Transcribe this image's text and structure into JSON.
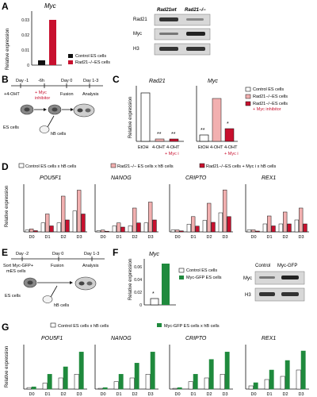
{
  "colors": {
    "white": "#ffffff",
    "black": "#111111",
    "pink": "#f2b0b0",
    "red": "#c8102e",
    "green": "#1f8a3d",
    "gray": "#bdbdbd",
    "blot_bg": "#d8d8d8"
  },
  "panels": {
    "A": {
      "letter": "A",
      "title": "Myc",
      "ylabel": "Relative expression",
      "yticks": [
        "0",
        "0.01",
        "0.02",
        "0.03"
      ],
      "legend": [
        "Control ES cells",
        "Rad21−/−ES cells"
      ],
      "blot_headers": [
        "Rad21wt",
        "Rad21−/−"
      ],
      "blot_rows": [
        "Rad21",
        "Myc",
        "H3"
      ]
    },
    "B": {
      "letter": "B",
      "timeline": [
        "Day -1",
        "-6h",
        "Day 0",
        "Day 1-3"
      ],
      "steps": [
        "+4-OHT",
        "+ Myc",
        "inhibitor",
        "Fusion",
        "Analysis"
      ],
      "cells": [
        "ES cells",
        "hB cells"
      ]
    },
    "C": {
      "letter": "C",
      "ylabel": "Relative expression",
      "titles": [
        "Rad21",
        "Myc"
      ],
      "xticks_left": [
        "EtOH",
        "4-OHT",
        "4-OHT"
      ],
      "xticks_right": [
        "EtOH",
        "4-OHT",
        "4-OHT"
      ],
      "sublabel": "+ Myc i",
      "legend": [
        "Control ES cells",
        "Rad21−/−ES cells",
        "Rad21−/−ES cells",
        "+ Myc inhibitor"
      ]
    },
    "D": {
      "letter": "D",
      "ylabel": "Relative expression",
      "legend": [
        "Control ES cells x hB cells",
        "Rad21−/− ES cells x hB cells",
        "Rad21−/−ES cells + Myc i x hB cells"
      ],
      "genes": [
        "POU5F1",
        "NANOG",
        "CRIPTO",
        "REX1"
      ],
      "days": [
        "D0",
        "D1",
        "D2",
        "D3"
      ]
    },
    "E": {
      "letter": "E",
      "timeline": [
        "Day -2",
        "Day 0",
        "Day 1-3"
      ],
      "steps": [
        "Sort Myc-GFP+",
        "mES cells",
        "Fusion",
        "Analysis"
      ],
      "cells": [
        "ES cells",
        "hB cells"
      ]
    },
    "F": {
      "letter": "F",
      "title": "Myc",
      "ylabel": "Relative expression",
      "yticks": [
        "0",
        "0.02",
        "0.04",
        "0.06"
      ],
      "legend": [
        "Control ES cells",
        "Myc-GFP ES cells"
      ],
      "blot_headers": [
        "Control",
        "Myc-GFP"
      ],
      "blot_rows": [
        "Myc",
        "H3"
      ]
    },
    "G": {
      "letter": "G",
      "ylabel": "Relative expression",
      "legend": [
        "Control ES cells x hB cells",
        "Myc-GFP ES cells x hB cells"
      ],
      "genes": [
        "POU5F1",
        "NANOG",
        "CRIPTO",
        "REX1"
      ],
      "days": [
        "D0",
        "D1",
        "D2",
        "D3"
      ]
    }
  },
  "chart_data": [
    {
      "panel": "A",
      "type": "bar",
      "title": "Myc",
      "xlabel": "",
      "ylabel": "Relative expression",
      "ylim": [
        0,
        0.035
      ],
      "series": [
        {
          "name": "Control ES cells",
          "values": [
            0.003
          ]
        },
        {
          "name": "Rad21−/−ES cells",
          "values": [
            0.03
          ]
        }
      ]
    },
    {
      "panel": "C",
      "type": "bar",
      "title": "Rad21",
      "ylabel": "Relative expression",
      "categories": [
        "EtOH",
        "4-OHT",
        "4-OHT + Myc i"
      ],
      "values": [
        1.0,
        0.05,
        0.05
      ],
      "ylim": [
        0,
        1.3
      ],
      "annotations": [
        "**",
        "**"
      ]
    },
    {
      "panel": "C",
      "type": "bar",
      "title": "Myc",
      "ylabel": "Relative expression",
      "categories": [
        "EtOH",
        "4-OHT",
        "4-OHT + Myc i"
      ],
      "values": [
        0.2,
        1.0,
        0.3
      ],
      "ylim": [
        0,
        1.3
      ],
      "annotations": [
        "**",
        "*"
      ]
    },
    {
      "panel": "D",
      "type": "bar",
      "title": "POU5F1",
      "ylabel": "Relative expression",
      "categories": [
        "D0",
        "D1",
        "D2",
        "D3"
      ],
      "ylim": [
        0,
        0.008
      ],
      "series": [
        {
          "name": "Control ES cells x hB cells",
          "values": [
            0.0003,
            0.0015,
            0.0015,
            0.0035
          ]
        },
        {
          "name": "Rad21−/− ES cells x hB cells",
          "values": [
            0.0005,
            0.003,
            0.006,
            0.007
          ]
        },
        {
          "name": "Rad21−/−ES cells + Myc i x hB cells",
          "values": [
            0.0002,
            0.001,
            0.002,
            0.003
          ]
        }
      ]
    },
    {
      "panel": "D",
      "type": "bar",
      "title": "NANOG",
      "ylabel": "Relative expression",
      "categories": [
        "D0",
        "D1",
        "D2",
        "D3"
      ],
      "ylim": [
        0,
        0.008
      ],
      "series": [
        {
          "name": "Control ES cells x hB cells",
          "values": [
            0.0002,
            0.001,
            0.001,
            0.0015
          ]
        },
        {
          "name": "Rad21−/− ES cells x hB cells",
          "values": [
            0.0003,
            0.0015,
            0.004,
            0.005
          ]
        },
        {
          "name": "Rad21−/−ES cells + Myc i x hB cells",
          "values": [
            0.0001,
            0.0008,
            0.0015,
            0.002
          ]
        }
      ]
    },
    {
      "panel": "D",
      "type": "bar",
      "title": "CRIPTO",
      "ylabel": "Relative expression",
      "categories": [
        "D0",
        "D1",
        "D2",
        "D3"
      ],
      "ylim": [
        0,
        0.025
      ],
      "series": [
        {
          "name": "Control ES cells x hB cells",
          "values": [
            0.001,
            0.004,
            0.006,
            0.01
          ]
        },
        {
          "name": "Rad21−/− ES cells x hB cells",
          "values": [
            0.001,
            0.008,
            0.015,
            0.022
          ]
        },
        {
          "name": "Rad21−/−ES cells + Myc i x hB cells",
          "values": [
            0.0005,
            0.003,
            0.005,
            0.008
          ]
        }
      ]
    },
    {
      "panel": "D",
      "type": "bar",
      "title": "REX1",
      "ylabel": "Relative expression",
      "categories": [
        "D0",
        "D1",
        "D2",
        "D3"
      ],
      "ylim": [
        0,
        0.012
      ],
      "series": [
        {
          "name": "Control ES cells x hB cells",
          "values": [
            0.0005,
            0.002,
            0.002,
            0.003
          ]
        },
        {
          "name": "Rad21−/− ES cells x hB cells",
          "values": [
            0.0005,
            0.004,
            0.005,
            0.006
          ]
        },
        {
          "name": "Rad21−/−ES cells + Myc i x hB cells",
          "values": [
            0.0002,
            0.0015,
            0.002,
            0.002
          ]
        }
      ]
    },
    {
      "panel": "F",
      "type": "bar",
      "title": "Myc",
      "ylabel": "Relative expression",
      "ylim": [
        0,
        0.08
      ],
      "series": [
        {
          "name": "Control ES cells",
          "values": [
            0.01
          ]
        },
        {
          "name": "Myc-GFP ES cells",
          "values": [
            0.065
          ]
        }
      ]
    },
    {
      "panel": "G",
      "type": "bar",
      "title": "POU5F1",
      "ylabel": "Relative expression",
      "categories": [
        "D0",
        "D1",
        "D2",
        "D3"
      ],
      "ylim": [
        0,
        0.006
      ],
      "series": [
        {
          "name": "Control ES cells x hB cells",
          "values": [
            0.0002,
            0.0008,
            0.0015,
            0.002
          ]
        },
        {
          "name": "Myc-GFP ES cells x hB cells",
          "values": [
            0.0003,
            0.002,
            0.003,
            0.005
          ]
        }
      ]
    },
    {
      "panel": "G",
      "type": "bar",
      "title": "NANOG",
      "ylabel": "Relative expression",
      "categories": [
        "D0",
        "D1",
        "D2",
        "D3"
      ],
      "ylim": [
        0,
        0.06
      ],
      "series": [
        {
          "name": "Control ES cells x hB cells",
          "values": [
            0.001,
            0.01,
            0.015,
            0.02
          ]
        },
        {
          "name": "Myc-GFP ES cells x hB cells",
          "values": [
            0.002,
            0.02,
            0.035,
            0.05
          ]
        }
      ]
    },
    {
      "panel": "G",
      "type": "bar",
      "title": "CRIPTO",
      "ylabel": "Relative expression",
      "categories": [
        "D0",
        "D1",
        "D2",
        "D3"
      ],
      "ylim": [
        0,
        0.06
      ],
      "series": [
        {
          "name": "Control ES cells x hB cells",
          "values": [
            0.001,
            0.01,
            0.015,
            0.02
          ]
        },
        {
          "name": "Myc-GFP ES cells x hB cells",
          "values": [
            0.002,
            0.02,
            0.04,
            0.05
          ]
        }
      ]
    },
    {
      "panel": "G",
      "type": "bar",
      "title": "REX1",
      "ylabel": "Relative expression",
      "categories": [
        "D0",
        "D1",
        "D2",
        "D3"
      ],
      "ylim": [
        0,
        0.0014
      ],
      "series": [
        {
          "name": "Control ES cells x hB cells",
          "values": [
            0.0001,
            0.0003,
            0.0004,
            0.0006
          ]
        },
        {
          "name": "Myc-GFP ES cells x hB cells",
          "values": [
            0.0002,
            0.0006,
            0.0009,
            0.0012
          ]
        }
      ]
    }
  ]
}
